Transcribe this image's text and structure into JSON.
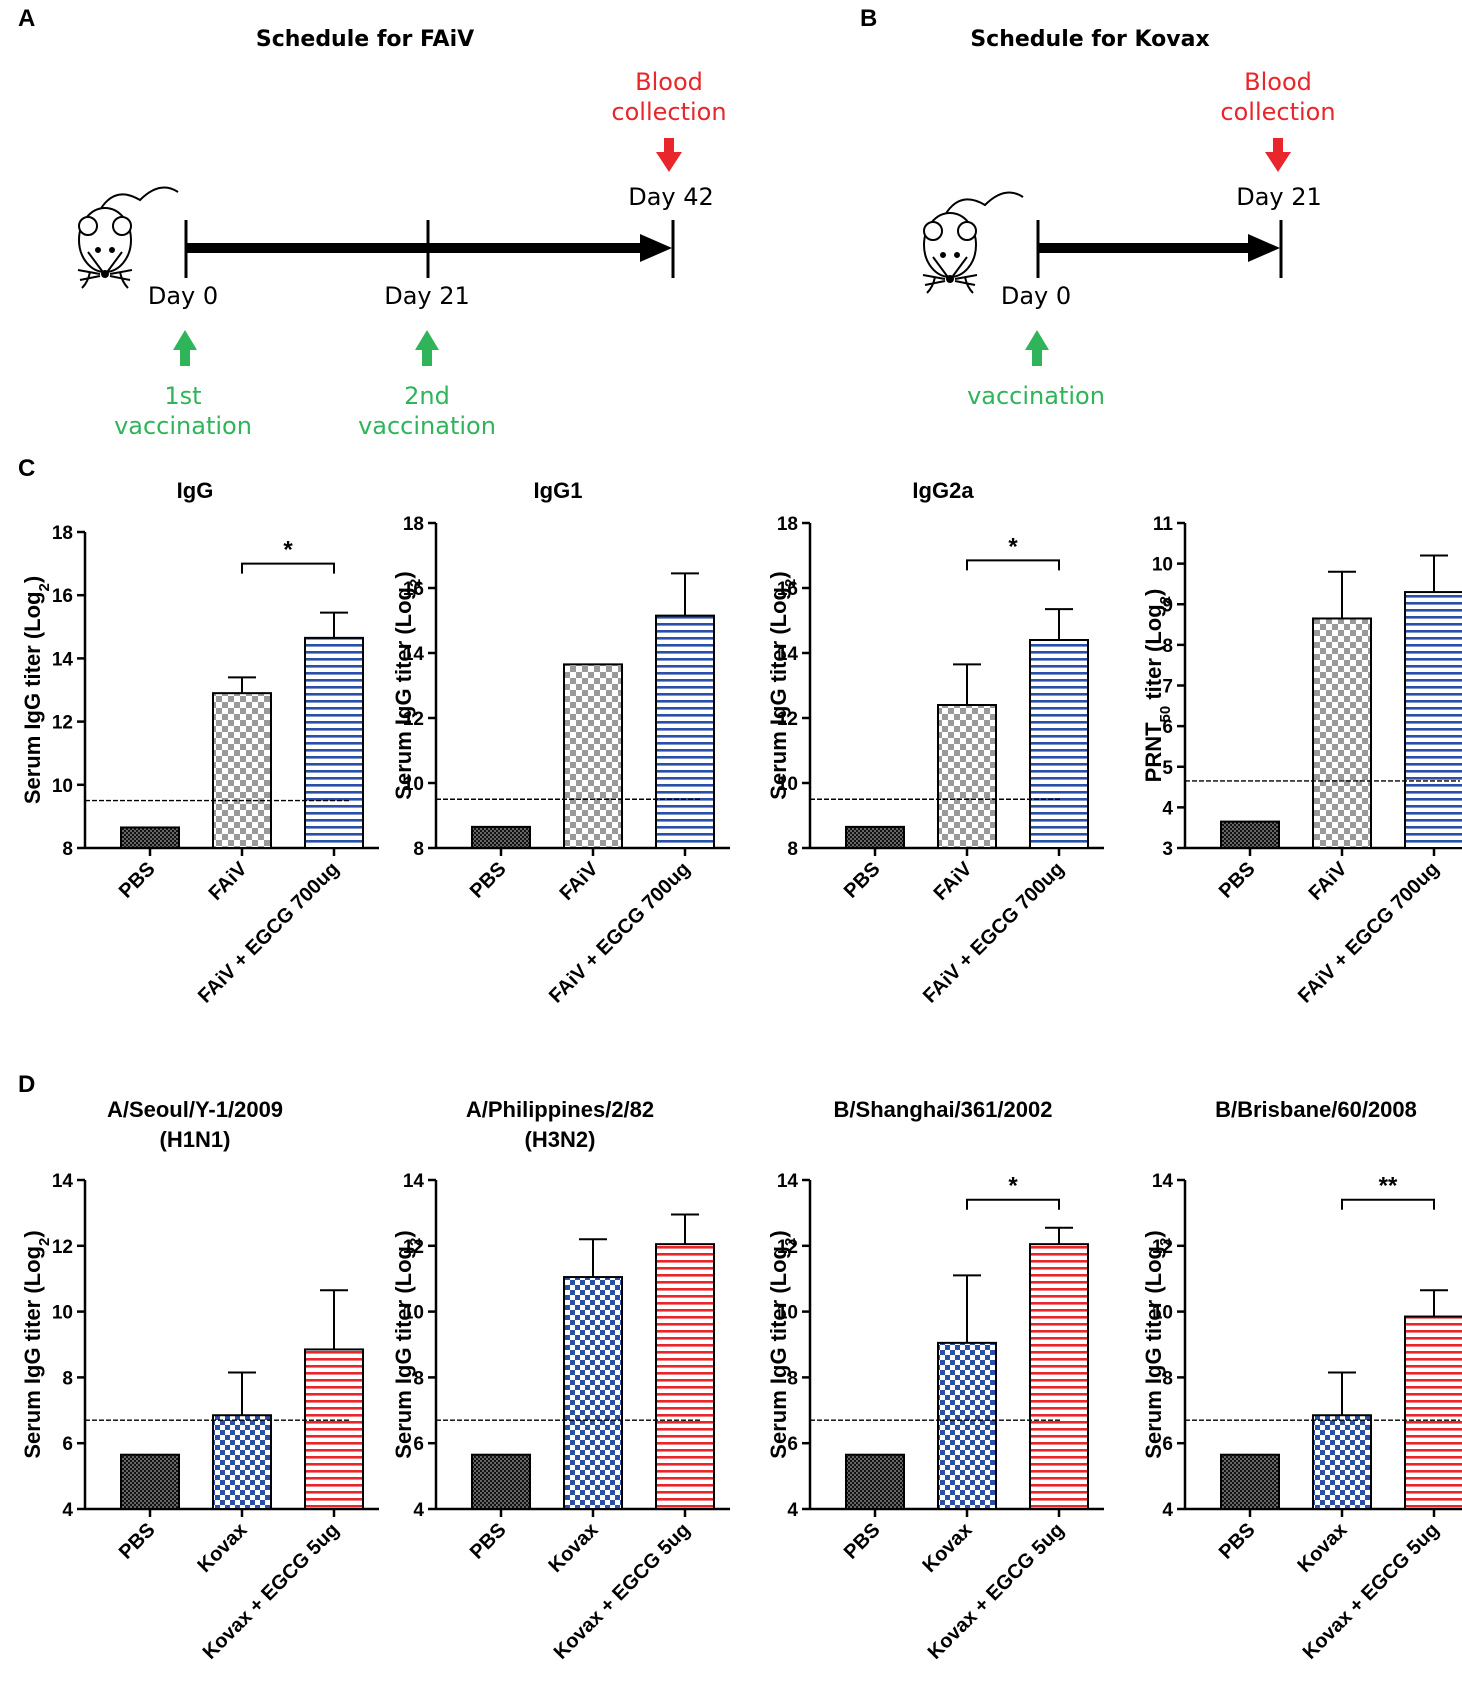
{
  "colors": {
    "green": "#2fb45a",
    "red": "#e8262b",
    "blue": "#2a4fa8",
    "red_bar": "#e8262b",
    "gray": "#9e9e9e",
    "black": "#000000"
  },
  "panels": {
    "a": {
      "letter": "A",
      "title": "Schedule for FAiV",
      "days": [
        "Day 0",
        "Day 21",
        "Day 42"
      ],
      "blood_line1": "Blood",
      "blood_line2": "collection",
      "vacc1_line1": "1st",
      "vacc1_line2": "vaccination",
      "vacc2_line1": "2nd",
      "vacc2_line2": "vaccination"
    },
    "b": {
      "letter": "B",
      "title": "Schedule for Kovax",
      "days": [
        "Day 0",
        "Day 21"
      ],
      "blood_line1": "Blood",
      "blood_line2": "collection",
      "vacc_line1": "vaccination"
    },
    "c": {
      "letter": "C"
    },
    "d": {
      "letter": "D"
    }
  },
  "chart_data": [
    {
      "type": "bar",
      "panel": "C",
      "title": "IgG",
      "title2": "",
      "ylabel": "Serum IgG titer (Log2)",
      "ylim": [
        8,
        18
      ],
      "yticks": [
        8,
        10,
        12,
        14,
        16,
        18
      ],
      "categories": [
        "PBS",
        "FAiV",
        "FAiV + EGCG 700ug"
      ],
      "values": [
        8.65,
        12.9,
        14.65
      ],
      "errors": [
        0,
        0.5,
        0.8
      ],
      "patterns": [
        "black",
        "checker-gray",
        "stripe-blue"
      ],
      "threshold": 9.5,
      "significance": [
        {
          "from": 1,
          "to": 2,
          "label": "*",
          "y": 17.0
        }
      ]
    },
    {
      "type": "bar",
      "panel": "C",
      "title": "IgG1",
      "title2": "",
      "ylabel": "Serum IgG titer (Log2)",
      "ylim": [
        8,
        18
      ],
      "yticks": [
        8,
        10,
        12,
        14,
        16,
        18
      ],
      "categories": [
        "PBS",
        "FAiV",
        "FAiV + EGCG 700ug"
      ],
      "values": [
        8.65,
        13.65,
        15.15
      ],
      "errors": [
        0,
        0,
        1.3
      ],
      "patterns": [
        "black",
        "checker-gray",
        "stripe-blue"
      ],
      "threshold": 9.5,
      "significance": []
    },
    {
      "type": "bar",
      "panel": "C",
      "title": "IgG2a",
      "title2": "",
      "ylabel": "Serum IgG titer (Log2)",
      "ylim": [
        8,
        18
      ],
      "yticks": [
        8,
        10,
        12,
        14,
        16,
        18
      ],
      "categories": [
        "PBS",
        "FAiV",
        "FAiV + EGCG 700ug"
      ],
      "values": [
        8.65,
        12.4,
        14.4
      ],
      "errors": [
        0,
        1.25,
        0.95
      ],
      "patterns": [
        "black",
        "checker-gray",
        "stripe-blue"
      ],
      "threshold": 9.5,
      "significance": [
        {
          "from": 1,
          "to": 2,
          "label": "*",
          "y": 16.85
        }
      ]
    },
    {
      "type": "bar",
      "panel": "C",
      "title": "",
      "title2": "",
      "ylabel": "PRNT50 titer (Log2)",
      "ylim": [
        3,
        11
      ],
      "yticks": [
        3,
        4,
        5,
        6,
        7,
        8,
        9,
        10,
        11
      ],
      "categories": [
        "PBS",
        "FAiV",
        "FAiV + EGCG 700ug"
      ],
      "values": [
        3.65,
        8.65,
        9.3
      ],
      "errors": [
        0,
        1.15,
        0.9
      ],
      "patterns": [
        "black",
        "checker-gray",
        "stripe-blue"
      ],
      "threshold": 4.65,
      "significance": []
    },
    {
      "type": "bar",
      "panel": "D",
      "title": "A/Seoul/Y-1/2009",
      "title2": "(H1N1)",
      "ylabel": "Serum IgG titer (Log2)",
      "ylim": [
        4,
        14
      ],
      "yticks": [
        4,
        6,
        8,
        10,
        12,
        14
      ],
      "categories": [
        "PBS",
        "Kovax",
        "Kovax + EGCG 5ug"
      ],
      "values": [
        5.65,
        6.85,
        8.85
      ],
      "errors": [
        0,
        1.3,
        1.8
      ],
      "patterns": [
        "black",
        "checker-blue",
        "stripe-red"
      ],
      "threshold": 6.7,
      "significance": []
    },
    {
      "type": "bar",
      "panel": "D",
      "title": "A/Philippines/2/82",
      "title2": "(H3N2)",
      "ylabel": "Serum IgG titer (Log2)",
      "ylim": [
        4,
        14
      ],
      "yticks": [
        4,
        6,
        8,
        10,
        12,
        14
      ],
      "categories": [
        "PBS",
        "Kovax",
        "Kovax + EGCG 5ug"
      ],
      "values": [
        5.65,
        11.05,
        12.05
      ],
      "errors": [
        0,
        1.15,
        0.9
      ],
      "patterns": [
        "black",
        "checker-blue",
        "stripe-red"
      ],
      "threshold": 6.7,
      "significance": []
    },
    {
      "type": "bar",
      "panel": "D",
      "title": "B/Shanghai/361/2002",
      "title2": "",
      "ylabel": "Serum IgG titer (Log2)",
      "ylim": [
        4,
        14
      ],
      "yticks": [
        4,
        6,
        8,
        10,
        12,
        14
      ],
      "categories": [
        "PBS",
        "Kovax",
        "Kovax + EGCG 5ug"
      ],
      "values": [
        5.65,
        9.05,
        12.05
      ],
      "errors": [
        0,
        2.05,
        0.5
      ],
      "patterns": [
        "black",
        "checker-blue",
        "stripe-red"
      ],
      "threshold": 6.7,
      "significance": [
        {
          "from": 1,
          "to": 2,
          "label": "*",
          "y": 13.4
        }
      ]
    },
    {
      "type": "bar",
      "panel": "D",
      "title": "B/Brisbane/60/2008",
      "title2": "",
      "ylabel": "Serum IgG titer (Log2)",
      "ylim": [
        4,
        14
      ],
      "yticks": [
        4,
        6,
        8,
        10,
        12,
        14
      ],
      "categories": [
        "PBS",
        "Kovax",
        "Kovax + EGCG 5ug"
      ],
      "values": [
        5.65,
        6.85,
        9.85
      ],
      "errors": [
        0,
        1.3,
        0.8
      ],
      "patterns": [
        "black",
        "checker-blue",
        "stripe-red"
      ],
      "threshold": 6.7,
      "significance": [
        {
          "from": 1,
          "to": 2,
          "label": "**",
          "y": 13.4
        }
      ]
    }
  ]
}
